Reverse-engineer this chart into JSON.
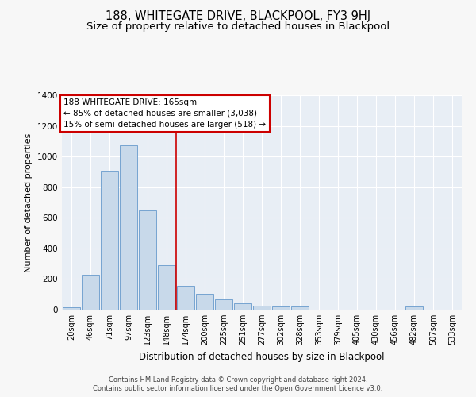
{
  "title": "188, WHITEGATE DRIVE, BLACKPOOL, FY3 9HJ",
  "subtitle": "Size of property relative to detached houses in Blackpool",
  "xlabel": "Distribution of detached houses by size in Blackpool",
  "ylabel": "Number of detached properties",
  "categories": [
    "20sqm",
    "46sqm",
    "71sqm",
    "97sqm",
    "123sqm",
    "148sqm",
    "174sqm",
    "200sqm",
    "225sqm",
    "251sqm",
    "277sqm",
    "302sqm",
    "328sqm",
    "353sqm",
    "379sqm",
    "405sqm",
    "430sqm",
    "456sqm",
    "482sqm",
    "507sqm",
    "533sqm"
  ],
  "values": [
    15,
    230,
    910,
    1075,
    650,
    290,
    155,
    105,
    70,
    40,
    25,
    20,
    20,
    0,
    0,
    0,
    0,
    0,
    20,
    0,
    0
  ],
  "bar_color": "#c8d9ea",
  "bar_edge_color": "#6699cc",
  "vline_x": 5.5,
  "vline_color": "#cc0000",
  "annotation_text": "188 WHITEGATE DRIVE: 165sqm\n← 85% of detached houses are smaller (3,038)\n15% of semi-detached houses are larger (518) →",
  "annotation_box_color": "#ffffff",
  "annotation_box_edge": "#cc0000",
  "ylim": [
    0,
    1400
  ],
  "yticks": [
    0,
    200,
    400,
    600,
    800,
    1000,
    1200,
    1400
  ],
  "footer1": "Contains HM Land Registry data © Crown copyright and database right 2024.",
  "footer2": "Contains public sector information licensed under the Open Government Licence v3.0.",
  "bg_color": "#e8eef5",
  "grid_color": "#ffffff",
  "fig_bg_color": "#f7f7f7",
  "title_fontsize": 10.5,
  "subtitle_fontsize": 9.5,
  "axis_label_fontsize": 8,
  "tick_fontsize": 7,
  "annotation_fontsize": 7.5,
  "footer_fontsize": 6
}
